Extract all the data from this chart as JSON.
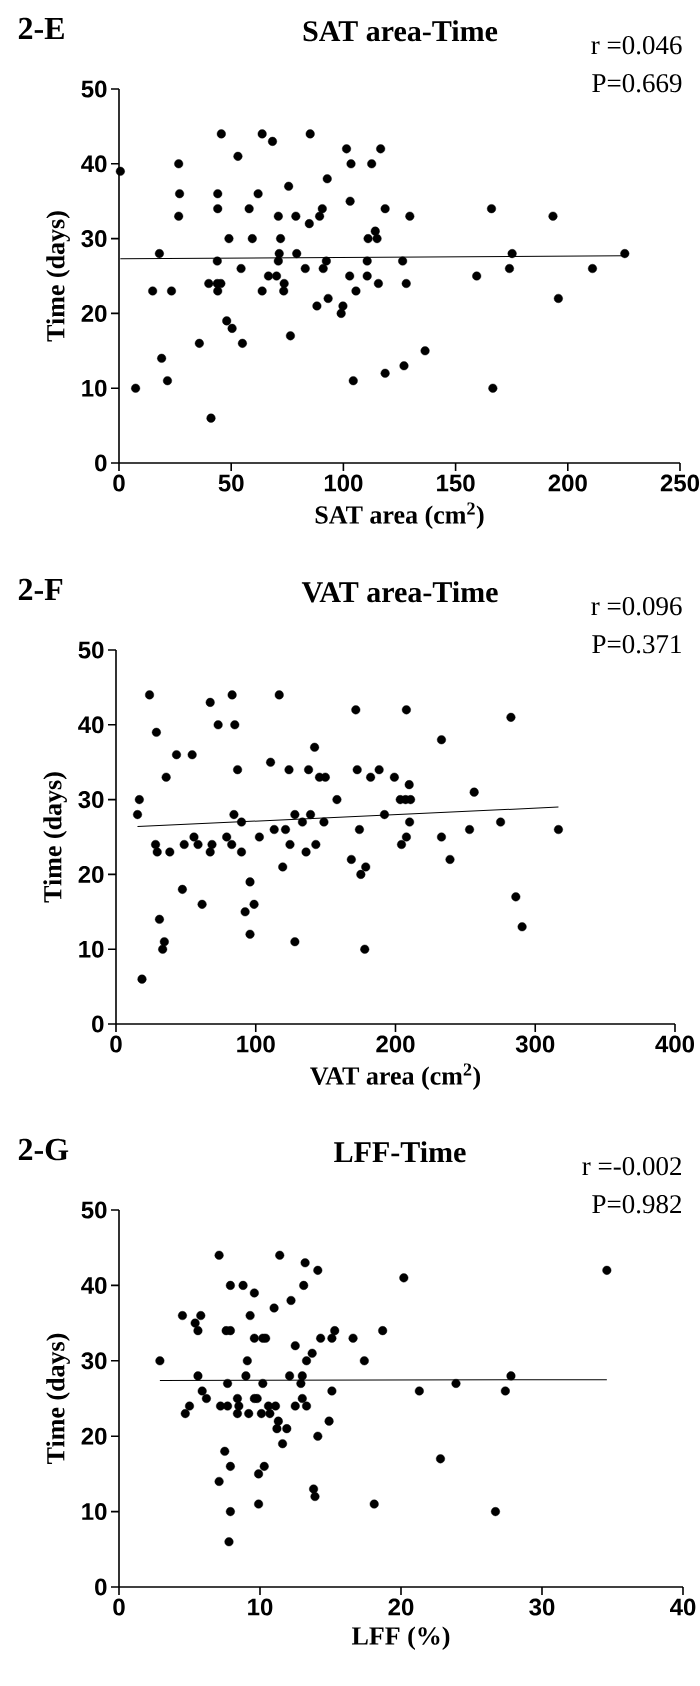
{
  "chart_data": [
    {
      "type": "scatter",
      "title": "SAT area-Time",
      "xlabel": "SAT area (cm$^{2}$)",
      "ylabel": "Time (days)",
      "annotations": [
        "2-E",
        "r =0.046",
        "P=0.669"
      ],
      "marker": "circle",
      "xlim": [
        0,
        250
      ],
      "ylim": [
        0,
        50
      ],
      "xticks": [
        0,
        50,
        100,
        150,
        200,
        250
      ],
      "yticks": [
        0,
        10,
        20,
        30,
        40,
        50
      ],
      "series": [
        {
          "color": "#000000",
          "x": [
            0.6,
            7.4,
            15,
            18,
            19,
            21.6,
            23.4,
            26.6,
            27,
            26.6,
            35.8,
            40,
            41,
            44,
            44,
            43.8,
            43.8,
            44,
            45.4,
            45.6,
            48,
            49,
            50.4,
            53,
            54.4,
            55,
            58,
            59.4,
            62,
            63.8,
            63.8,
            66.6,
            68.4,
            70.2,
            71,
            71.4,
            71,
            72,
            73.6,
            73.4,
            75.6,
            76.4,
            78.8,
            79.2,
            83,
            84.8,
            85.2,
            88.2,
            89.4,
            90.6,
            91,
            92.4,
            92.8,
            93.2,
            99,
            99.8,
            101.4,
            102.8,
            103.4,
            103,
            104.4,
            105.6,
            110.6,
            110.6,
            111,
            112.6,
            114.2,
            115,
            115.6,
            116.6,
            118.6,
            118.6,
            126.4,
            127,
            128,
            129.6,
            136.4,
            159.4,
            166,
            166.6,
            174,
            175.2,
            193.4,
            195.8,
            211,
            225.4
          ],
          "values": [
            39,
            10,
            23,
            28,
            14,
            11,
            23,
            40,
            36,
            33,
            16,
            24,
            6,
            36,
            34,
            27,
            24,
            23,
            24,
            44,
            19,
            30,
            18,
            41,
            26,
            16,
            34,
            30,
            36,
            44,
            23,
            25,
            43,
            25,
            33,
            28,
            27,
            30,
            24,
            23,
            37,
            17,
            33,
            28,
            26,
            32,
            44,
            21,
            33,
            34,
            26,
            27,
            38,
            22,
            20,
            21,
            42,
            25,
            40,
            35,
            11,
            23,
            25,
            27,
            30,
            40,
            31,
            30,
            24,
            42,
            34,
            12,
            27,
            13,
            24,
            33,
            15,
            25,
            34,
            10,
            26,
            28,
            33,
            22,
            26,
            28
          ]
        },
        {
          "type": "line",
          "marker": "none",
          "color": "#000000",
          "x": [
            0.6,
            225.4
          ],
          "values": [
            27.3,
            27.7
          ]
        }
      ]
    },
    {
      "type": "scatter",
      "title": "VAT area-Time",
      "xlabel": "VAT area (cm$^{2}$)",
      "ylabel": "Time (days)",
      "annotations": [
        "2-F",
        "r =0.096",
        "P=0.371"
      ],
      "marker": "circle",
      "xlim": [
        0,
        400
      ],
      "ylim": [
        0,
        50
      ],
      "xticks": [
        0,
        100,
        200,
        300,
        400
      ],
      "yticks": [
        0,
        10,
        20,
        30,
        40,
        50
      ],
      "series": [
        {
          "color": "#000000",
          "x": [
            15.4,
            16.7,
            18.6,
            24,
            28.9,
            28.3,
            29.5,
            31.1,
            33.4,
            34.6,
            35.9,
            38.5,
            43.3,
            47.5,
            48.8,
            54.5,
            55.8,
            58.7,
            61.6,
            67.4,
            67.4,
            68.7,
            73.1,
            79.2,
            82.8,
            83.1,
            85,
            84.4,
            87,
            89.8,
            89.8,
            92.4,
            95.9,
            95.9,
            98.8,
            102.6,
            110.6,
            113.2,
            116.8,
            119.3,
            121.3,
            123.8,
            124.5,
            128,
            128,
            133.4,
            136,
            137.8,
            139.2,
            142.1,
            143,
            145.6,
            148.8,
            149.8,
            158.1,
            168.4,
            171.6,
            172.6,
            174.2,
            175.2,
            178.7,
            178,
            182.2,
            188.3,
            192.1,
            199.2,
            203.4,
            204.3,
            207.8,
            207.8,
            207.2,
            209.8,
            210.8,
            210.1,
            232.9,
            232.9,
            239,
            253,
            256.3,
            275.2,
            282.6,
            286.1,
            290.6,
            316.6
          ],
          "values": [
            28,
            30,
            6,
            44,
            39,
            24,
            23,
            14,
            10,
            11,
            33,
            23,
            36,
            18,
            24,
            36,
            25,
            24,
            16,
            43,
            23,
            24,
            40,
            25,
            24,
            44,
            40,
            28,
            34,
            27,
            23,
            15,
            19,
            12,
            16,
            25,
            35,
            26,
            44,
            21,
            26,
            34,
            24,
            28,
            11,
            27,
            23,
            34,
            28,
            37,
            24,
            33,
            27,
            33,
            30,
            22,
            42,
            34,
            26,
            20,
            21,
            10,
            33,
            34,
            28,
            33,
            30,
            24,
            42,
            25,
            30,
            32,
            30,
            27,
            38,
            25,
            22,
            26,
            31,
            27,
            41,
            17,
            13,
            26
          ]
        },
        {
          "type": "line",
          "marker": "none",
          "color": "#000000",
          "x": [
            15.4,
            316.6
          ],
          "values": [
            26.4,
            29.0
          ]
        }
      ]
    },
    {
      "type": "scatter",
      "title": "LFF-Time",
      "xlabel": "LFF (%)",
      "ylabel": "Time (days)",
      "annotations": [
        "2-G",
        "r =-0.002",
        "P=0.982"
      ],
      "marker": "circle",
      "xlim": [
        0,
        40
      ],
      "ylim": [
        0,
        50
      ],
      "xticks": [
        0,
        10,
        20,
        30,
        40
      ],
      "yticks": [
        0,
        10,
        20,
        30,
        40,
        50
      ],
      "series": [
        {
          "color": "#000000",
          "x": [
            2.9,
            4.5,
            4.7,
            5.0,
            5.4,
            5.6,
            5.8,
            5.6,
            5.9,
            6.2,
            7.1,
            7.1,
            7.2,
            7.5,
            7.6,
            7.7,
            7.7,
            7.9,
            7.9,
            7.9,
            7.9,
            7.8,
            8.4,
            8.5,
            8.4,
            8.8,
            9.0,
            9.1,
            9.2,
            9.3,
            9.6,
            9.6,
            9.6,
            9.8,
            9.9,
            9.9,
            10.1,
            10.2,
            10.2,
            10.3,
            10.4,
            10.6,
            10.7,
            11.0,
            11.1,
            11.3,
            11.2,
            11.4,
            11.6,
            11.9,
            12.1,
            12.2,
            12.5,
            12.5,
            12.9,
            13.0,
            13.0,
            13.2,
            13.1,
            13.3,
            13.3,
            13.7,
            13.8,
            13.9,
            14.1,
            14.1,
            14.3,
            14.9,
            15.1,
            15.1,
            15.3,
            16.6,
            17.4,
            18.1,
            18.7,
            20.2,
            21.3,
            22.8,
            23.9,
            26.7,
            27.4,
            27.8,
            34.6
          ],
          "values": [
            30,
            36,
            23,
            24,
            35,
            34,
            36,
            28,
            26,
            25,
            44,
            14,
            24,
            18,
            34,
            27,
            24,
            40,
            34,
            16,
            10,
            6,
            25,
            24,
            23,
            40,
            28,
            30,
            23,
            36,
            39,
            33,
            25,
            25,
            15,
            11,
            23,
            27,
            33,
            16,
            33,
            24,
            23,
            37,
            24,
            22,
            21,
            44,
            19,
            21,
            28,
            38,
            32,
            24,
            27,
            25,
            28,
            43,
            40,
            30,
            24,
            31,
            13,
            12,
            42,
            20,
            33,
            22,
            26,
            33,
            34,
            33,
            30,
            11,
            34,
            41,
            26,
            17,
            27,
            10,
            26,
            28,
            42
          ]
        },
        {
          "type": "line",
          "marker": "none",
          "color": "#000000",
          "x": [
            2.9,
            34.6
          ],
          "values": [
            27.4,
            27.5
          ]
        }
      ]
    }
  ]
}
